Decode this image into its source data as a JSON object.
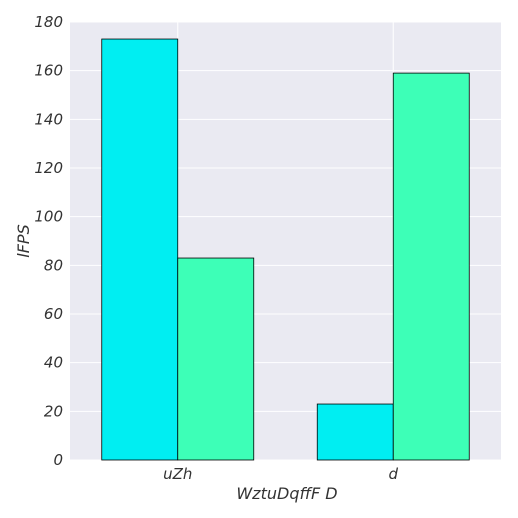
{
  "chart_data": {
    "type": "bar",
    "title": "",
    "xlabel": "WztuDqffF D",
    "ylabel": "lFPS",
    "categories": [
      "uZh",
      "d"
    ],
    "series": [
      {
        "values": [
          173,
          23
        ],
        "color": "#00eef2"
      },
      {
        "values": [
          83,
          159
        ],
        "color": "#3dffb7"
      }
    ],
    "ylim": [
      0,
      180
    ],
    "yticks": [
      0,
      20,
      40,
      60,
      80,
      100,
      120,
      140,
      160,
      180
    ],
    "grid": true,
    "legend": "none",
    "colors": {
      "plot_background": "#eaeaf2",
      "grid": "#ffffff",
      "bar_edge": "#000000",
      "text": "#333333"
    }
  }
}
